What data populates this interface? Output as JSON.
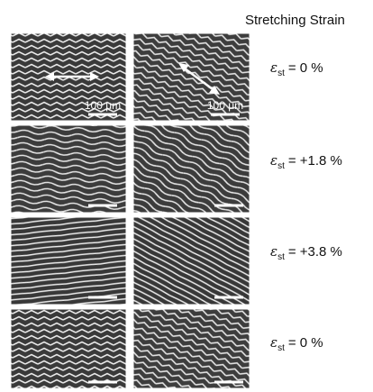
{
  "header": "Stretching Strain",
  "rows": [
    {
      "symbol": "ε",
      "subscript": "st",
      "value": "= 0 %"
    },
    {
      "symbol": "ε",
      "subscript": "st",
      "value": "= +1.8 %"
    },
    {
      "symbol": "ε",
      "subscript": "st",
      "value": "= +3.8 %"
    },
    {
      "symbol": "ε",
      "subscript": "st",
      "value": "= 0 %"
    }
  ],
  "scale_labels": [
    "100 μm",
    "100 μm"
  ]
}
